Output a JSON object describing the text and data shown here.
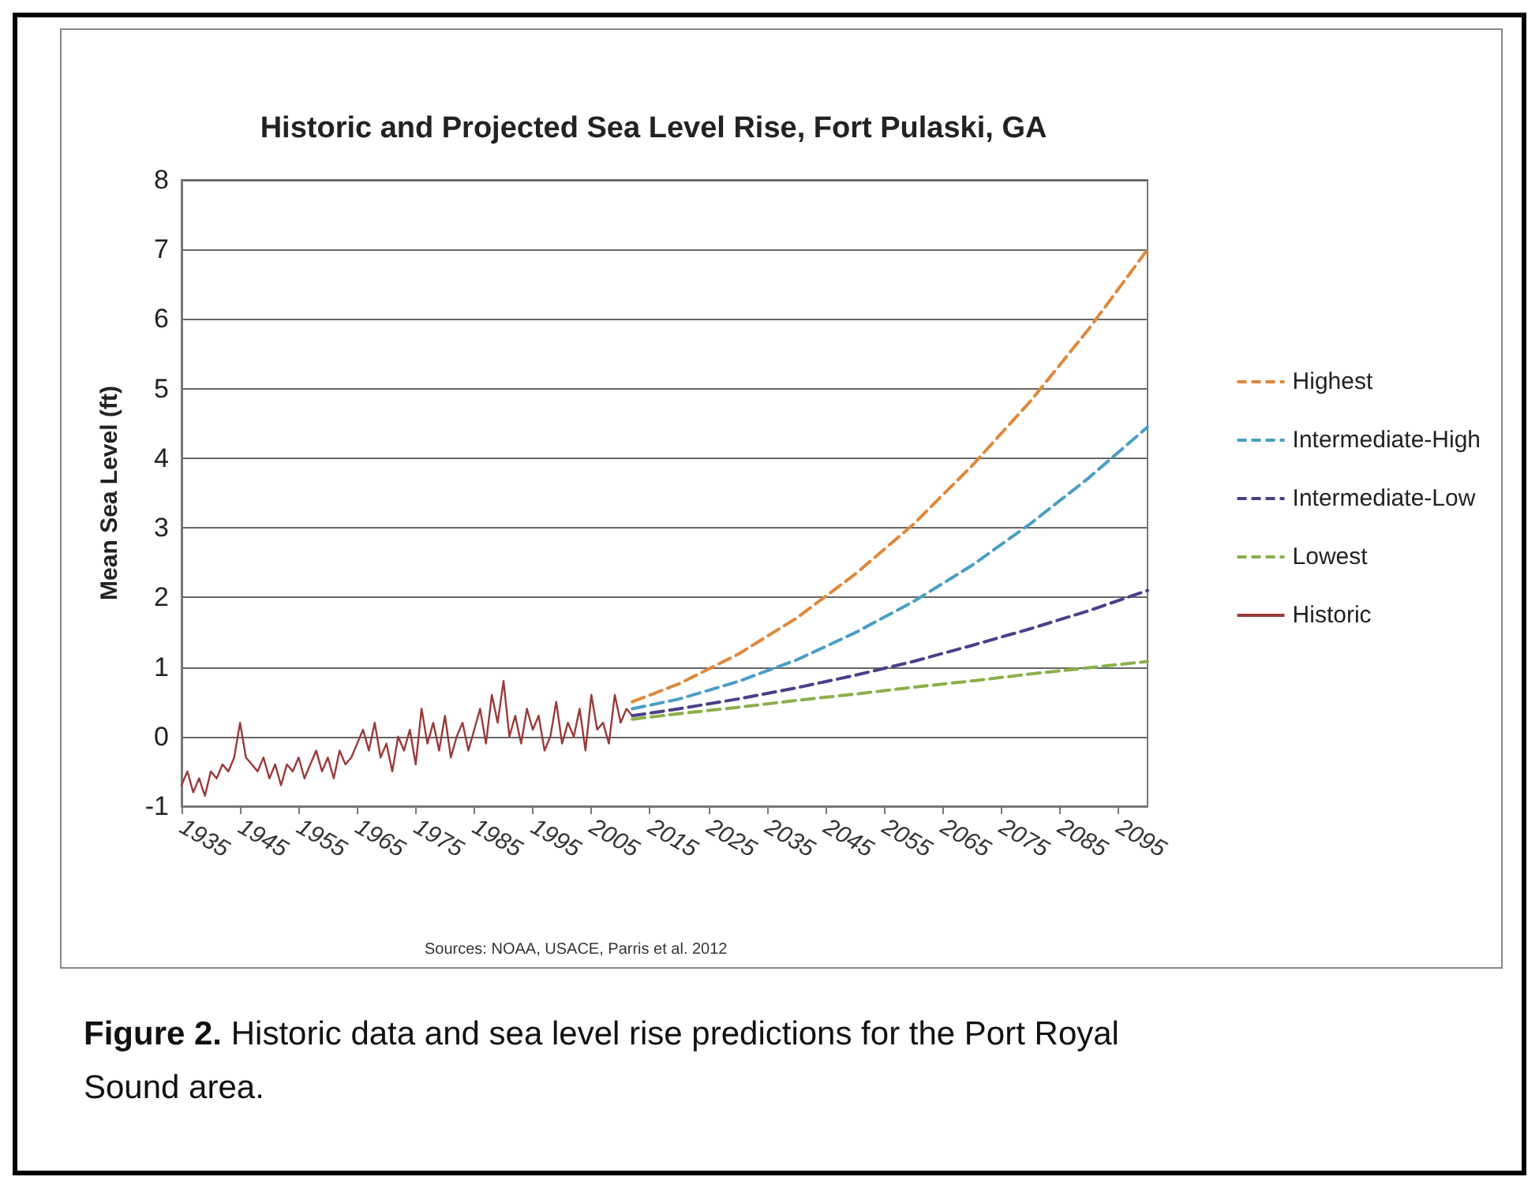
{
  "chart_data": {
    "type": "line",
    "title": "Historic and Projected Sea Level Rise, Fort Pulaski, GA",
    "ylabel": "Mean Sea Level (ft)",
    "xlim": [
      1935,
      2100
    ],
    "xticks": [
      1935,
      1945,
      1955,
      1965,
      1975,
      1985,
      1995,
      2005,
      2015,
      2025,
      2035,
      2045,
      2055,
      2065,
      2075,
      2085,
      2095
    ],
    "ylim": [
      -1,
      8
    ],
    "yticks": [
      -1,
      0,
      1,
      2,
      3,
      4,
      5,
      6,
      7,
      8
    ],
    "grid": "y",
    "legend": "right",
    "marker": "none",
    "series": [
      {
        "name": "Highest",
        "color": "#e0883a",
        "line_style": "dashed",
        "x": [
          2012,
          2020,
          2030,
          2040,
          2050,
          2060,
          2070,
          2080,
          2090,
          2100
        ],
        "values": [
          0.5,
          0.76,
          1.18,
          1.7,
          2.33,
          3.05,
          3.89,
          4.82,
          5.86,
          7.0
        ]
      },
      {
        "name": "Intermediate-High",
        "color": "#4a9ec4",
        "line_style": "dashed",
        "x": [
          2012,
          2020,
          2030,
          2040,
          2050,
          2060,
          2070,
          2080,
          2090,
          2100
        ],
        "values": [
          0.4,
          0.54,
          0.79,
          1.1,
          1.49,
          1.94,
          2.46,
          3.06,
          3.72,
          4.45
        ]
      },
      {
        "name": "Intermediate-Low",
        "color": "#4a3f8a",
        "line_style": "dashed",
        "x": [
          2012,
          2020,
          2030,
          2040,
          2050,
          2060,
          2070,
          2080,
          2090,
          2100
        ],
        "values": [
          0.3,
          0.4,
          0.54,
          0.7,
          0.88,
          1.08,
          1.31,
          1.55,
          1.81,
          2.1
        ]
      },
      {
        "name": "Lowest",
        "color": "#8ab04a",
        "line_style": "dashed",
        "x": [
          2012,
          2020,
          2030,
          2040,
          2050,
          2060,
          2070,
          2080,
          2090,
          2100
        ],
        "values": [
          0.25,
          0.33,
          0.42,
          0.52,
          0.61,
          0.71,
          0.8,
          0.9,
          0.99,
          1.08
        ]
      },
      {
        "name": "Historic",
        "color": "#9a3a3a",
        "line_style": "solid",
        "x": [
          1935,
          1936,
          1937,
          1938,
          1939,
          1940,
          1941,
          1942,
          1943,
          1944,
          1945,
          1946,
          1947,
          1948,
          1949,
          1950,
          1951,
          1952,
          1953,
          1954,
          1955,
          1956,
          1957,
          1958,
          1959,
          1960,
          1961,
          1962,
          1963,
          1964,
          1965,
          1966,
          1967,
          1968,
          1969,
          1970,
          1971,
          1972,
          1973,
          1974,
          1975,
          1976,
          1977,
          1978,
          1979,
          1980,
          1981,
          1982,
          1983,
          1984,
          1985,
          1986,
          1987,
          1988,
          1989,
          1990,
          1991,
          1992,
          1993,
          1994,
          1995,
          1996,
          1997,
          1998,
          1999,
          2000,
          2001,
          2002,
          2003,
          2004,
          2005,
          2006,
          2007,
          2008,
          2009,
          2010,
          2011,
          2012
        ],
        "values": [
          -0.7,
          -0.5,
          -0.8,
          -0.6,
          -0.85,
          -0.5,
          -0.6,
          -0.4,
          -0.5,
          -0.3,
          0.2,
          -0.3,
          -0.4,
          -0.5,
          -0.3,
          -0.6,
          -0.4,
          -0.7,
          -0.4,
          -0.5,
          -0.3,
          -0.6,
          -0.4,
          -0.2,
          -0.5,
          -0.3,
          -0.6,
          -0.2,
          -0.4,
          -0.3,
          -0.1,
          0.1,
          -0.2,
          0.2,
          -0.3,
          -0.1,
          -0.5,
          0.0,
          -0.2,
          0.1,
          -0.4,
          0.4,
          -0.1,
          0.2,
          -0.2,
          0.3,
          -0.3,
          0.0,
          0.2,
          -0.2,
          0.1,
          0.4,
          -0.1,
          0.6,
          0.2,
          0.8,
          0.0,
          0.3,
          -0.1,
          0.4,
          0.1,
          0.3,
          -0.2,
          0.0,
          0.5,
          -0.1,
          0.2,
          0.0,
          0.4,
          -0.2,
          0.6,
          0.1,
          0.2,
          -0.1,
          0.6,
          0.2,
          0.4,
          0.3
        ]
      }
    ],
    "annotations": [
      "Sources: NOAA, USACE, Parris et al. 2012",
      "Figure 2. Historic data and sea level rise predictions for the Port Royal Sound area."
    ]
  }
}
